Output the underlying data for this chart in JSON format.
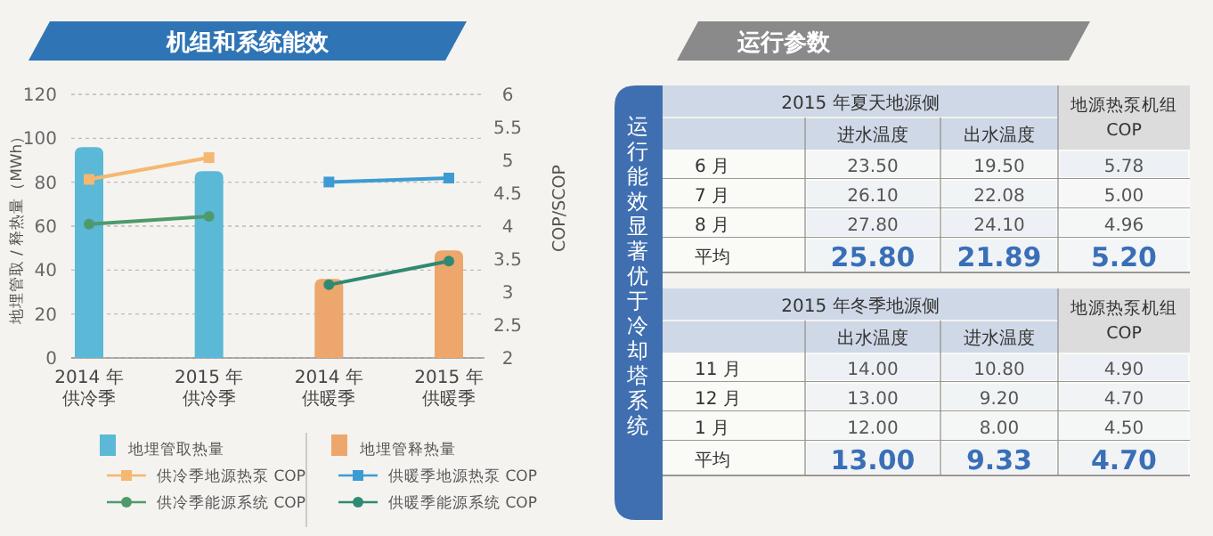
{
  "chart_data": [
    {
      "type": "bar",
      "title": "机组和系统能效",
      "ylabel": "地埋管取 / 释热量（MWh）",
      "y2label": "COP/SCOP",
      "categories": [
        "2014 年供冷季",
        "2015 年供冷季",
        "2014 年供暖季",
        "2015 年供暖季"
      ],
      "ylim": [
        0,
        120
      ],
      "yticks": [
        0,
        20,
        40,
        60,
        80,
        100,
        120
      ],
      "y2lim": [
        2,
        6
      ],
      "y2ticks": [
        2,
        2.5,
        3,
        3.5,
        4,
        4.5,
        5,
        5.5,
        6
      ],
      "grid": "y",
      "legend": "bottom",
      "series": [
        {
          "name": "地埋管取热量",
          "type": "bar",
          "color": "#5bb8d6",
          "values": [
            96,
            85,
            null,
            null
          ]
        },
        {
          "name": "地埋管释热量",
          "type": "bar",
          "color": "#eda66b",
          "values": [
            null,
            null,
            36,
            49
          ]
        },
        {
          "name": "供冷季地源热泵 COP",
          "type": "line",
          "axis": "y2",
          "marker": "square",
          "color": "#f4b870",
          "values": [
            4.71,
            5.04,
            null,
            null
          ]
        },
        {
          "name": "供暖季地源热泵 COP",
          "type": "line",
          "axis": "y2",
          "marker": "square",
          "color": "#3d9bd3",
          "values": [
            null,
            null,
            4.67,
            4.73
          ]
        },
        {
          "name": "供冷季能源系统 COP",
          "type": "line",
          "axis": "y2",
          "marker": "circle",
          "color": "#4e9a6b",
          "values": [
            4.03,
            4.15,
            null,
            null
          ]
        },
        {
          "name": "供暖季能源系统 COP",
          "type": "line",
          "axis": "y2",
          "marker": "circle",
          "color": "#2f8a73",
          "values": [
            null,
            null,
            3.11,
            3.47
          ]
        }
      ]
    },
    {
      "type": "heatmap",
      "title": "运行参数",
      "subtitle": "2015 年夏天地源侧",
      "annotations": [
        "运行能效显著优于冷却塔系统"
      ],
      "categories": [
        "进水温度",
        "出水温度",
        "地源热泵机组 COP"
      ],
      "y_categories": [
        "6 月",
        "7 月",
        "8 月",
        "平均"
      ],
      "cells": [
        [
          23.5,
          19.5,
          5.78
        ],
        [
          26.1,
          22.08,
          5.0
        ],
        [
          27.8,
          24.1,
          4.96
        ],
        [
          25.8,
          21.89,
          5.2
        ]
      ],
      "cell_labels": [
        [
          "23.50",
          "19.50",
          "5.78"
        ],
        [
          "26.10",
          "22.08",
          "5.00"
        ],
        [
          "27.80",
          "24.10",
          "4.96"
        ],
        [
          "25.80",
          "21.89",
          "5.20"
        ]
      ]
    },
    {
      "type": "heatmap",
      "subtitle": "2015 年冬季地源侧",
      "categories": [
        "出水温度",
        "进水温度",
        "地源热泵机组 COP"
      ],
      "y_categories": [
        "11 月",
        "12 月",
        "1 月",
        "平均"
      ],
      "cells": [
        [
          14.0,
          10.8,
          4.9
        ],
        [
          13.0,
          9.2,
          4.7
        ],
        [
          12.0,
          8.0,
          4.5
        ],
        [
          13.0,
          9.33,
          4.7
        ]
      ],
      "cell_labels": [
        [
          "14.00",
          "10.80",
          "4.90"
        ],
        [
          "13.00",
          "9.20",
          "4.70"
        ],
        [
          "12.00",
          "8.00",
          "4.50"
        ],
        [
          "13.00",
          "9.33",
          "4.70"
        ]
      ]
    }
  ]
}
